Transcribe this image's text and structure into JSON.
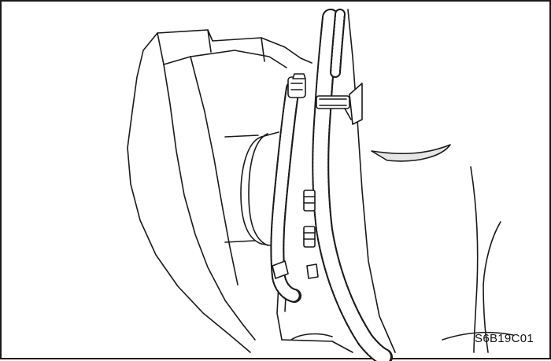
{
  "figure": {
    "code": "S6B19C01"
  },
  "colors": {
    "ink": "#1a1a1a",
    "paper": "#ffffff",
    "shade": "#e6e6e6"
  }
}
